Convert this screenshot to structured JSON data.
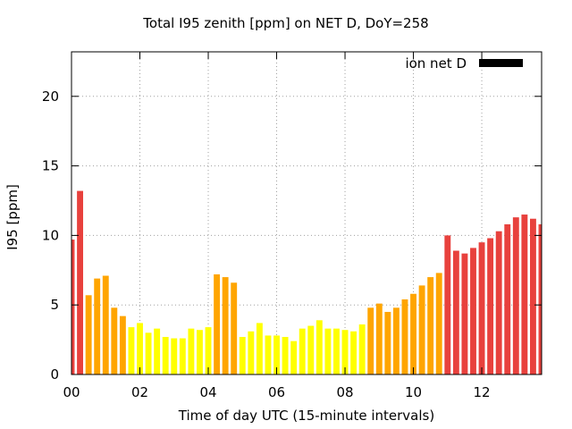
{
  "chart_data": {
    "type": "bar",
    "title": "Total I95 zenith [ppm] on NET D, DoY=258",
    "xlabel": "Time of day UTC (15-minute intervals)",
    "ylabel": "I95 [ppm]",
    "ylim": [
      0,
      23.2
    ],
    "xlim": [
      0,
      13.75
    ],
    "xticks": [
      "00",
      "02",
      "04",
      "06",
      "08",
      "10",
      "12"
    ],
    "yticks": [
      "0",
      "5",
      "10",
      "15",
      "20"
    ],
    "grid": true,
    "legend": {
      "label": "ion net D",
      "color": "#000000",
      "placement": "top-right"
    },
    "interval_hours": 0.25,
    "colors": {
      "yellow": "#ffff00",
      "orange": "#ffa500",
      "red": "#e8413d"
    },
    "series": [
      {
        "values": [
          9.7,
          13.2,
          5.7,
          6.9,
          7.1,
          4.8,
          4.2,
          3.4,
          3.7,
          3.0,
          3.3,
          2.7,
          2.6,
          2.6,
          3.3,
          3.2,
          3.4,
          7.2,
          7.0,
          6.6,
          2.7,
          3.1,
          3.7,
          2.8,
          2.8,
          2.7,
          2.4,
          3.3,
          3.5,
          3.9,
          3.3,
          3.3,
          3.2,
          3.1,
          3.6,
          4.8,
          5.1,
          4.5,
          4.8,
          5.4,
          5.8,
          6.4,
          7.0,
          7.3,
          10.0,
          8.9,
          8.7,
          9.1,
          9.5,
          9.8,
          10.3,
          10.8,
          11.3,
          11.5,
          11.2,
          10.8
        ],
        "bar_colors": [
          "red",
          "red",
          "orange",
          "orange",
          "orange",
          "orange",
          "orange",
          "yellow",
          "yellow",
          "yellow",
          "yellow",
          "yellow",
          "yellow",
          "yellow",
          "yellow",
          "yellow",
          "yellow",
          "orange",
          "orange",
          "orange",
          "yellow",
          "yellow",
          "yellow",
          "yellow",
          "yellow",
          "yellow",
          "yellow",
          "yellow",
          "yellow",
          "yellow",
          "yellow",
          "yellow",
          "yellow",
          "yellow",
          "yellow",
          "orange",
          "orange",
          "orange",
          "orange",
          "orange",
          "orange",
          "orange",
          "orange",
          "orange",
          "red",
          "red",
          "red",
          "red",
          "red",
          "red",
          "red",
          "red",
          "red",
          "red",
          "red",
          "red"
        ]
      }
    ]
  }
}
